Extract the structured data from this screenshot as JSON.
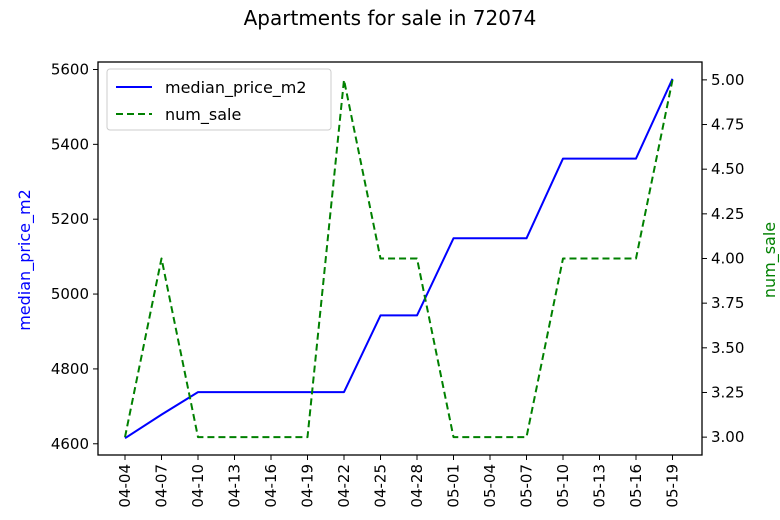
{
  "chart_data": {
    "type": "line",
    "title": "Apartments for sale in 72074",
    "x": [
      "04-04",
      "04-07",
      "04-10",
      "04-13",
      "04-16",
      "04-19",
      "04-22",
      "04-25",
      "04-28",
      "05-01",
      "05-04",
      "05-07",
      "05-10",
      "05-13",
      "05-16",
      "05-19"
    ],
    "series": [
      {
        "name": "median_price_m2",
        "axis": "left",
        "style": "solid",
        "color": "#0000ff",
        "values": [
          4615,
          4678,
          4738,
          4738,
          4738,
          4738,
          4738,
          4943,
          4943,
          5149,
          5149,
          5149,
          5362,
          5362,
          5362,
          5575
        ]
      },
      {
        "name": "num_sale",
        "axis": "right",
        "style": "dashed",
        "color": "#008000",
        "values": [
          3,
          4,
          3,
          3,
          3,
          3,
          5,
          4,
          4,
          3,
          3,
          3,
          4,
          4,
          4,
          5
        ]
      }
    ],
    "ylabel_left": "median_price_m2",
    "ylabel_right": "num_sale",
    "ylim_left": [
      4570,
      5620
    ],
    "yticks_left": [
      "4600",
      "4800",
      "5000",
      "5200",
      "5400",
      "5600"
    ],
    "ylim_right": [
      2.9,
      5.1
    ],
    "yticks_right": [
      "3.00",
      "3.25",
      "3.50",
      "3.75",
      "4.00",
      "4.25",
      "4.50",
      "4.75",
      "5.00"
    ],
    "xlabel": "",
    "legend_position": "upper-left",
    "grid": false,
    "left_label_color": "#0000ff",
    "right_label_color": "#008000"
  }
}
